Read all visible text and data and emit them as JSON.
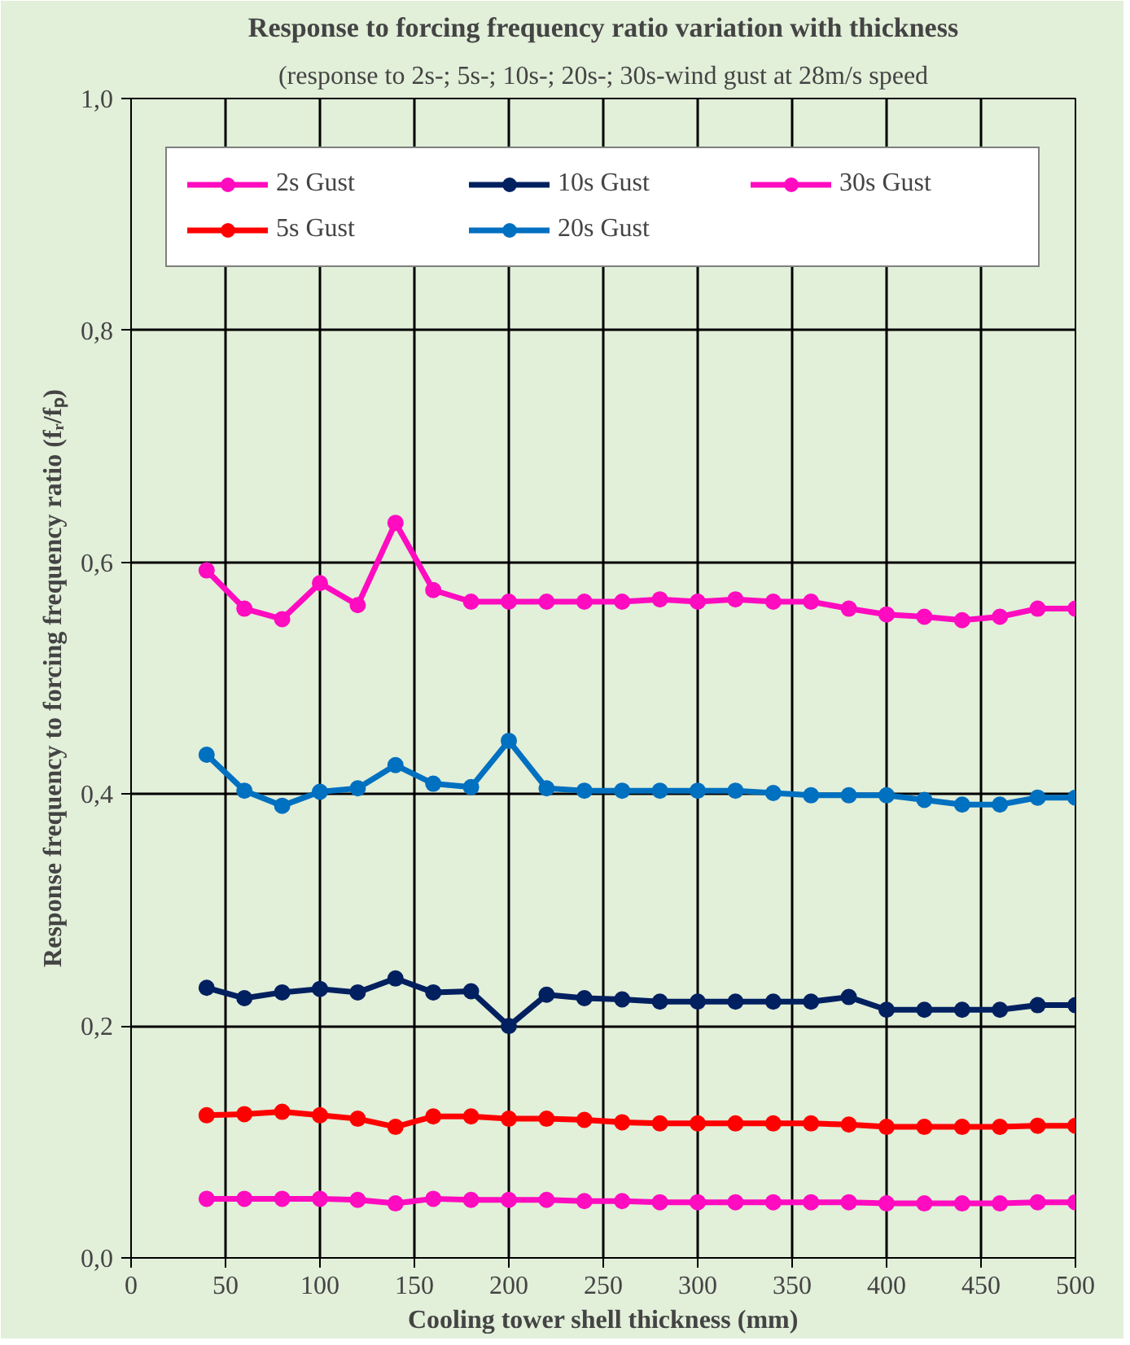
{
  "chart_data": {
    "type": "line",
    "title": "Response to forcing frequency ratio variation with thickness",
    "subtitle": "(response to 2s-; 5s-; 10s-; 20s-; 30s-wind gust at 28m/s speed",
    "xlabel": "Cooling tower shell thickness (mm)",
    "ylabel": "Response frequency to forcing frequency ratio (fᵣ/fₚ)",
    "x": [
      40,
      60,
      80,
      100,
      120,
      140,
      160,
      180,
      200,
      220,
      240,
      260,
      280,
      300,
      320,
      340,
      360,
      380,
      400,
      420,
      440,
      460,
      480,
      500
    ],
    "series": [
      {
        "name": "2s Gust",
        "color": "#ff0bc0",
        "values": [
          0.051,
          0.051,
          0.051,
          0.051,
          0.05,
          0.047,
          0.051,
          0.05,
          0.05,
          0.05,
          0.049,
          0.049,
          0.048,
          0.048,
          0.048,
          0.048,
          0.048,
          0.048,
          0.047,
          0.047,
          0.047,
          0.047,
          0.048,
          0.048
        ]
      },
      {
        "name": "5s Gust",
        "color": "#ff0000",
        "values": [
          0.123,
          0.124,
          0.126,
          0.123,
          0.12,
          0.113,
          0.122,
          0.122,
          0.12,
          0.12,
          0.119,
          0.117,
          0.116,
          0.116,
          0.116,
          0.116,
          0.116,
          0.115,
          0.113,
          0.113,
          0.113,
          0.113,
          0.114,
          0.114
        ]
      },
      {
        "name": "10s Gust",
        "color": "#002060",
        "values": [
          0.233,
          0.224,
          0.229,
          0.232,
          0.229,
          0.241,
          0.229,
          0.23,
          0.2,
          0.227,
          0.224,
          0.223,
          0.221,
          0.221,
          0.221,
          0.221,
          0.221,
          0.225,
          0.214,
          0.214,
          0.214,
          0.214,
          0.218,
          0.218
        ]
      },
      {
        "name": "20s Gust",
        "color": "#0070c0",
        "values": [
          0.434,
          0.403,
          0.39,
          0.402,
          0.405,
          0.425,
          0.409,
          0.406,
          0.446,
          0.405,
          0.403,
          0.403,
          0.403,
          0.403,
          0.403,
          0.401,
          0.399,
          0.399,
          0.399,
          0.395,
          0.391,
          0.391,
          0.397,
          0.397
        ]
      },
      {
        "name": "30s Gust",
        "color": "#ff0bc0",
        "values": [
          0.593,
          0.56,
          0.551,
          0.582,
          0.563,
          0.634,
          0.576,
          0.566,
          0.566,
          0.566,
          0.566,
          0.566,
          0.568,
          0.566,
          0.568,
          0.566,
          0.566,
          0.56,
          0.555,
          0.553,
          0.55,
          0.553,
          0.56,
          0.56
        ]
      }
    ],
    "xlim": [
      0,
      500
    ],
    "xticks": [
      0,
      50,
      100,
      150,
      200,
      250,
      300,
      350,
      400,
      450,
      500
    ],
    "ylim": [
      0,
      1.0
    ],
    "yticks": [
      {
        "value": 0,
        "label": "0,0"
      },
      {
        "value": 0.2,
        "label": "0,2"
      },
      {
        "value": 0.4,
        "label": "0,4"
      },
      {
        "value": 0.6,
        "label": "0,6"
      },
      {
        "value": 0.8,
        "label": "0,8"
      },
      {
        "value": 1.0,
        "label": "1,0"
      }
    ],
    "grid": true,
    "legend": "top",
    "marker": "circle",
    "line_style": "solid"
  }
}
